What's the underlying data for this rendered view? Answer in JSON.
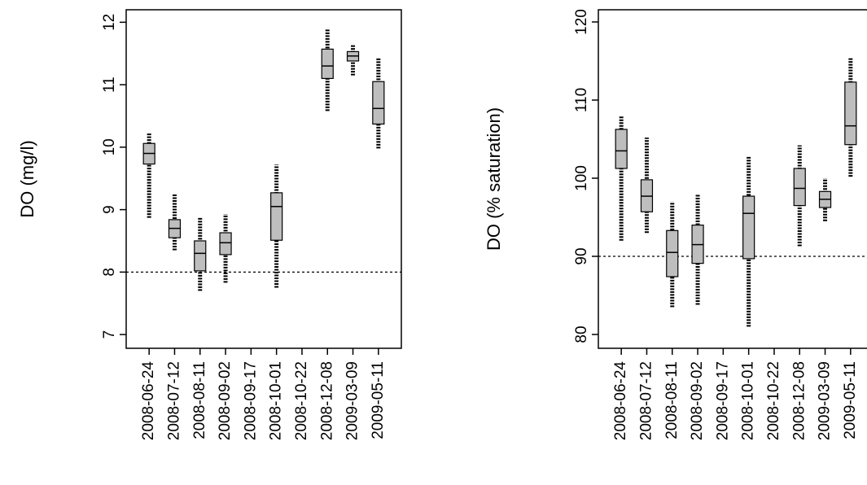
{
  "chart_data": [
    {
      "type": "box",
      "ylabel": "DO (mg/l)",
      "categories": [
        "2008-06-24",
        "2008-07-12",
        "2008-08-11",
        "2008-09-02",
        "2008-09-17",
        "2008-10-01",
        "2008-10-22",
        "2008-12-08",
        "2009-03-09",
        "2009-05-11"
      ],
      "min": [
        8.87,
        8.35,
        7.7,
        7.83,
        null,
        7.75,
        null,
        10.58,
        11.15,
        9.98
      ],
      "q1": [
        9.73,
        8.55,
        8.02,
        8.28,
        null,
        8.51,
        null,
        11.1,
        11.38,
        10.37
      ],
      "median": [
        9.9,
        8.7,
        8.3,
        8.47,
        null,
        9.05,
        null,
        11.3,
        11.46,
        10.62
      ],
      "q3": [
        10.06,
        8.84,
        8.5,
        8.63,
        null,
        9.27,
        null,
        11.57,
        11.53,
        11.05
      ],
      "max": [
        10.22,
        9.25,
        8.87,
        8.93,
        null,
        9.72,
        null,
        11.9,
        11.65,
        11.42
      ],
      "color": "#bebebe",
      "hline": 8,
      "ylim": [
        6.78,
        12.2
      ],
      "yticks": [
        7,
        8,
        9,
        10,
        11,
        12
      ]
    },
    {
      "type": "box",
      "ylabel": "DO (% saturation)",
      "categories": [
        "2008-06-24",
        "2008-07-12",
        "2008-08-11",
        "2008-09-02",
        "2008-09-17",
        "2008-10-01",
        "2008-10-22",
        "2008-12-08",
        "2009-03-09",
        "2009-05-11"
      ],
      "min": [
        92,
        93,
        83.5,
        83.8,
        null,
        81,
        null,
        91.3,
        94.5,
        100.2
      ],
      "q1": [
        101.25,
        95.7,
        87.4,
        89.1,
        null,
        89.7,
        null,
        96.5,
        96.25,
        104.3
      ],
      "median": [
        103.5,
        97.7,
        90.5,
        91.5,
        null,
        95.5,
        null,
        98.7,
        97.3,
        106.7
      ],
      "q3": [
        106.25,
        99.8,
        93.3,
        94,
        null,
        97.7,
        null,
        101.25,
        98.3,
        112.3
      ],
      "max": [
        108,
        105.2,
        97,
        98,
        null,
        102.8,
        null,
        104.2,
        100,
        115.5
      ],
      "color": "#bebebe",
      "hline": 90,
      "ylim": [
        78.23,
        121.56
      ],
      "yticks": [
        80,
        90,
        100,
        110,
        120
      ]
    }
  ]
}
